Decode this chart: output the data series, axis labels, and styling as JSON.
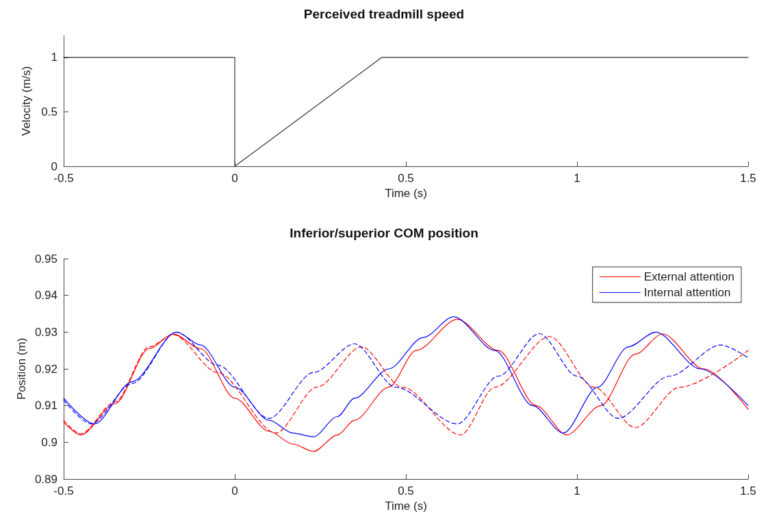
{
  "chart_data": [
    {
      "type": "line",
      "title": "Perceived treadmill speed",
      "xlabel": "Time (s)",
      "ylabel": "Velocity (m/s)",
      "xlim": [
        -0.5,
        1.5
      ],
      "xticks": [
        -0.5,
        0,
        0.5,
        1,
        1.5
      ],
      "ylim": [
        0,
        1.2
      ],
      "yticks": [
        0,
        0.5,
        1
      ],
      "grid": false,
      "legend": false,
      "marker": "none",
      "series": [
        {
          "color": "#333333",
          "line_style": "solid",
          "x": [
            -0.5,
            0,
            0,
            0.43,
            1.5
          ],
          "values": [
            1,
            1,
            0,
            1,
            1
          ]
        }
      ]
    },
    {
      "type": "line",
      "title": "Inferior/superior COM position",
      "xlabel": "Time (s)",
      "ylabel": "Position (m)",
      "xlim": [
        -0.5,
        1.5
      ],
      "xticks": [
        -0.5,
        0,
        0.5,
        1,
        1.5
      ],
      "ylim": [
        0.89,
        0.95
      ],
      "yticks": [
        0.89,
        0.9,
        0.91,
        0.92,
        0.93,
        0.94,
        0.95
      ],
      "grid": false,
      "legend": "top right",
      "marker": "none",
      "series": [
        {
          "name": "External attention",
          "color": "#ff0000",
          "line_style": "solid",
          "x": [
            -0.5,
            -0.45,
            -0.35,
            -0.25,
            -0.18,
            -0.1,
            0,
            0.1,
            0.17,
            0.23,
            0.3,
            0.35,
            0.45,
            0.53,
            0.65,
            0.77,
            0.88,
            0.97,
            1.07,
            1.17,
            1.25,
            1.37,
            1.5
          ],
          "values": [
            0.9055,
            0.902,
            0.9105,
            0.9255,
            0.9295,
            0.9255,
            0.912,
            0.903,
            0.8995,
            0.8975,
            0.902,
            0.906,
            0.915,
            0.925,
            0.9335,
            0.925,
            0.91,
            0.902,
            0.91,
            0.924,
            0.9295,
            0.92,
            0.909
          ]
        },
        {
          "name": "Internal attention",
          "color": "#0000ff",
          "line_style": "solid",
          "x": [
            -0.5,
            -0.41,
            -0.3,
            -0.17,
            -0.1,
            0,
            0.1,
            0.17,
            0.23,
            0.3,
            0.35,
            0.45,
            0.55,
            0.64,
            0.76,
            0.87,
            0.96,
            1.06,
            1.15,
            1.23,
            1.36,
            1.5
          ],
          "values": [
            0.912,
            0.905,
            0.9165,
            0.93,
            0.9265,
            0.915,
            0.906,
            0.9025,
            0.9015,
            0.907,
            0.912,
            0.92,
            0.9285,
            0.9342,
            0.925,
            0.91,
            0.9025,
            0.915,
            0.926,
            0.93,
            0.92,
            0.91
          ]
        },
        {
          "color": "#ff0000",
          "line_style": "dashed",
          "x": [
            -0.5,
            -0.45,
            -0.35,
            -0.25,
            -0.18,
            -0.05,
            0.12,
            0.24,
            0.37,
            0.49,
            0.66,
            0.76,
            0.92,
            1.05,
            1.17,
            1.3,
            1.5
          ],
          "values": [
            0.906,
            0.9023,
            0.911,
            0.926,
            0.9293,
            0.919,
            0.9025,
            0.915,
            0.926,
            0.915,
            0.902,
            0.915,
            0.9288,
            0.915,
            0.904,
            0.915,
            0.925
          ]
        },
        {
          "color": "#0000ff",
          "line_style": "dashed",
          "x": [
            -0.5,
            -0.42,
            -0.3,
            -0.17,
            -0.05,
            0.1,
            0.23,
            0.35,
            0.47,
            0.65,
            0.77,
            0.89,
            1.0,
            1.12,
            1.27,
            1.42,
            1.5
          ],
          "values": [
            0.9115,
            0.905,
            0.916,
            0.93,
            0.921,
            0.9065,
            0.919,
            0.9268,
            0.915,
            0.905,
            0.918,
            0.9296,
            0.918,
            0.9065,
            0.918,
            0.9265,
            0.923
          ]
        }
      ]
    }
  ]
}
